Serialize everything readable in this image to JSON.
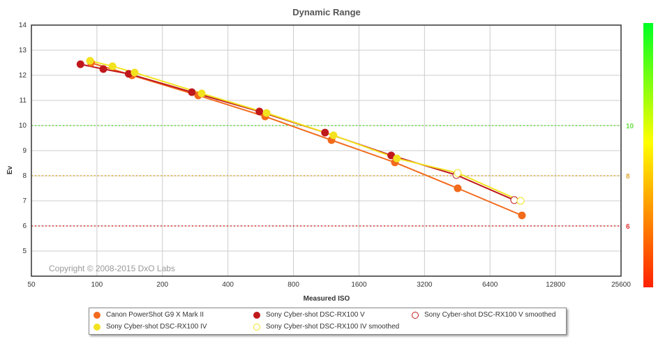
{
  "chart_data": {
    "type": "line",
    "title": "Dynamic Range",
    "xlabel": "Measured ISO",
    "ylabel": "Ev",
    "xscale": "log2",
    "xlim": [
      50,
      25600
    ],
    "ylim": [
      4,
      14
    ],
    "xticks": [
      "50",
      "100",
      "200",
      "400",
      "800",
      "1600",
      "3200",
      "6400",
      "12800",
      "25600"
    ],
    "yticks": [
      "5",
      "6",
      "7",
      "8",
      "9",
      "10",
      "11",
      "12",
      "13",
      "14"
    ],
    "grid": true,
    "reference_lines": [
      {
        "y": 10,
        "label": "10",
        "color": "#66dd44"
      },
      {
        "y": 8,
        "label": "8",
        "color": "#ddaa33"
      },
      {
        "y": 6,
        "label": "6",
        "color": "#dd3333"
      }
    ],
    "watermark": "Copyright © 2008-2015 DxO Labs",
    "legend_placement": "bottom",
    "series": [
      {
        "name": "Canon PowerShot G9 X Mark II",
        "color": "#f26a1b",
        "style": "filled",
        "x": [
          94,
          145,
          292,
          593,
          1196,
          2340,
          4548,
          8970
        ],
        "y": [
          12.5,
          12.0,
          11.2,
          10.36,
          9.42,
          8.53,
          7.5,
          6.42
        ]
      },
      {
        "name": "Sony Cyber-shot DSC-RX100 V",
        "color": "#c0191c",
        "style": "filled",
        "x": [
          84,
          107,
          140,
          273,
          558,
          1117,
          2250
        ],
        "y": [
          12.44,
          12.25,
          12.06,
          11.33,
          10.56,
          9.72,
          8.81
        ]
      },
      {
        "name": "Sony Cyber-shot DSC-RX100 V smoothed",
        "color": "#c0191c",
        "style": "hollow",
        "x": [
          4485,
          8270
        ],
        "y": [
          8.03,
          7.03
        ]
      },
      {
        "name": "Sony Cyber-shot DSC-RX100 IV",
        "color": "#f2e31f",
        "style": "filled",
        "x": [
          93,
          118,
          149,
          303,
          602,
          1222,
          2390
        ],
        "y": [
          12.58,
          12.36,
          12.11,
          11.28,
          10.5,
          9.61,
          8.69
        ]
      },
      {
        "name": "Sony Cyber-shot DSC-RX100 IV smoothed",
        "color": "#f2e31f",
        "style": "hollow",
        "x": [
          4548,
          8840
        ],
        "y": [
          8.11,
          7.0
        ]
      }
    ]
  }
}
